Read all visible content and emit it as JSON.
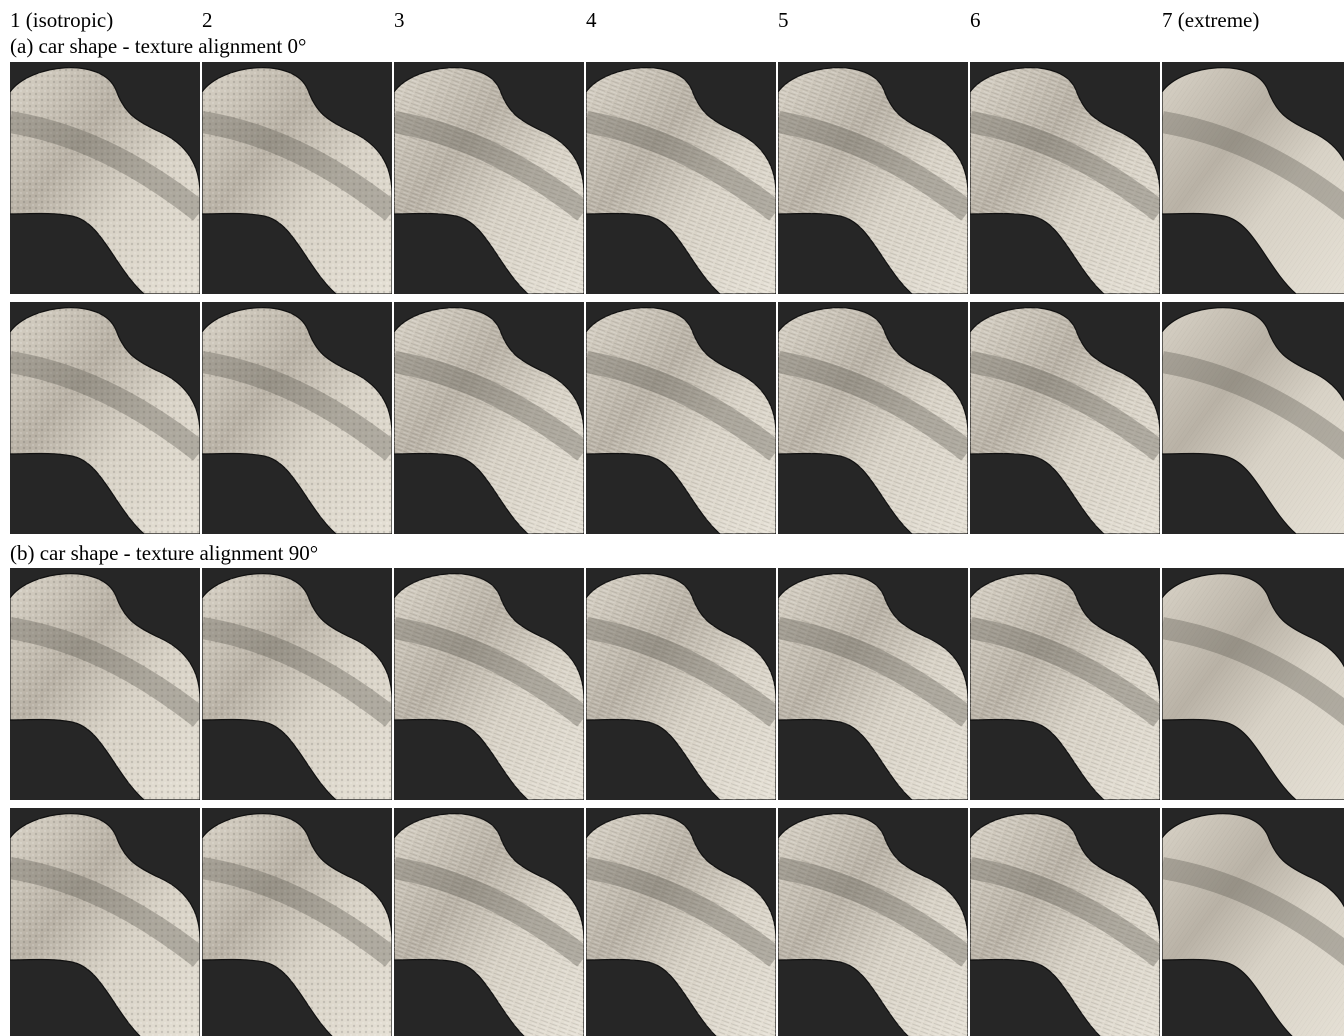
{
  "column_labels": [
    "1 (isotropic)",
    "2",
    "3",
    "4",
    "5",
    "6",
    "7 (extreme)"
  ],
  "sections": [
    {
      "label": "(a) car shape - texture alignment 0°"
    },
    {
      "label": "(b) car shape - texture alignment 90°"
    }
  ]
}
